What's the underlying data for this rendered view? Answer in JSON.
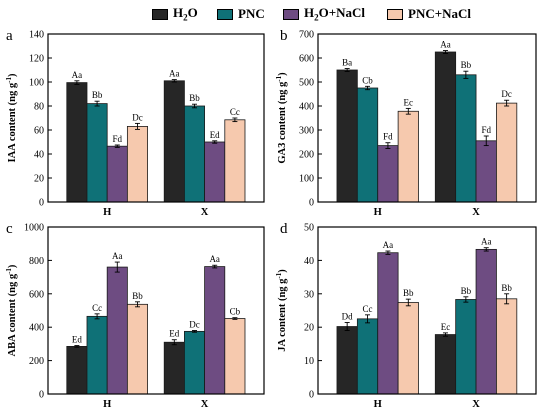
{
  "legend": {
    "items": [
      {
        "name": "H2O",
        "base": "H",
        "sub": "2",
        "rest": "O",
        "color": "#262626"
      },
      {
        "name": "PNC",
        "base": "PNC",
        "sub": "",
        "rest": "",
        "color": "#0f7177"
      },
      {
        "name": "H2O+NaCl",
        "base": "H",
        "sub": "2",
        "rest": "O+NaCl",
        "color": "#6e4c82"
      },
      {
        "name": "PNC+NaCl",
        "base": "PNC+NaCl",
        "sub": "",
        "rest": "",
        "color": "#f6c9ae"
      }
    ]
  },
  "chart_data": [
    {
      "type": "bar",
      "panel_letter": "a",
      "ylabel_main": "IAA content (ng g",
      "ylabel_sup": "-1",
      "ylabel_end": ")",
      "ylim": [
        0,
        140
      ],
      "yticks": [
        0,
        20,
        40,
        60,
        80,
        100,
        120,
        140
      ],
      "categories": [
        "H",
        "X"
      ],
      "series": [
        {
          "name": "H2O",
          "values": [
            99.5,
            101
          ],
          "errors": [
            1.5,
            1
          ],
          "labels": [
            "Aa",
            "Aa"
          ]
        },
        {
          "name": "PNC",
          "values": [
            82,
            80
          ],
          "errors": [
            2,
            1.5
          ],
          "labels": [
            "Bb",
            "Bb"
          ]
        },
        {
          "name": "H2O+NaCl",
          "values": [
            46.5,
            50
          ],
          "errors": [
            1,
            1
          ],
          "labels": [
            "Fd",
            "Ed"
          ]
        },
        {
          "name": "PNC+NaCl",
          "values": [
            63,
            68.5
          ],
          "errors": [
            2.5,
            1.5
          ],
          "labels": [
            "Dc",
            "Cc"
          ]
        }
      ]
    },
    {
      "type": "bar",
      "panel_letter": "b",
      "ylabel_main": "GA3 content (ng g",
      "ylabel_sup": "-1",
      "ylabel_end": ")",
      "ylim": [
        0,
        700
      ],
      "yticks": [
        0,
        100,
        200,
        300,
        400,
        500,
        600,
        700
      ],
      "categories": [
        "H",
        "X"
      ],
      "series": [
        {
          "name": "H2O",
          "values": [
            550,
            625
          ],
          "errors": [
            6,
            6
          ],
          "labels": [
            "Ba",
            "Aa"
          ]
        },
        {
          "name": "PNC",
          "values": [
            475,
            530
          ],
          "errors": [
            7,
            15
          ],
          "labels": [
            "Cb",
            "Bb"
          ]
        },
        {
          "name": "H2O+NaCl",
          "values": [
            235,
            255
          ],
          "errors": [
            12,
            20
          ],
          "labels": [
            "Fd",
            "Fd"
          ]
        },
        {
          "name": "PNC+NaCl",
          "values": [
            378,
            412
          ],
          "errors": [
            12,
            12
          ],
          "labels": [
            "Ec",
            "Dc"
          ]
        }
      ]
    },
    {
      "type": "bar",
      "panel_letter": "c",
      "ylabel_main": "ABA content (ng g",
      "ylabel_sup": "-1",
      "ylabel_end": ")",
      "ylim": [
        0,
        1000
      ],
      "yticks": [
        0,
        200,
        400,
        600,
        800,
        1000
      ],
      "categories": [
        "H",
        "X"
      ],
      "series": [
        {
          "name": "H2O",
          "values": [
            285,
            310
          ],
          "errors": [
            5,
            15
          ],
          "labels": [
            "Ed",
            "Ed"
          ]
        },
        {
          "name": "PNC",
          "values": [
            465,
            375
          ],
          "errors": [
            15,
            5
          ],
          "labels": [
            "Cc",
            "Dc"
          ]
        },
        {
          "name": "H2O+NaCl",
          "values": [
            760,
            763
          ],
          "errors": [
            30,
            8
          ],
          "labels": [
            "Aa",
            "Aa"
          ]
        },
        {
          "name": "PNC+NaCl",
          "values": [
            537,
            452
          ],
          "errors": [
            15,
            5
          ],
          "labels": [
            "Bb",
            "Cb"
          ]
        }
      ]
    },
    {
      "type": "bar",
      "panel_letter": "d",
      "ylabel_main": "JA content (ng g",
      "ylabel_sup": "-1",
      "ylabel_end": ")",
      "ylim": [
        0,
        50
      ],
      "yticks": [
        0,
        10,
        20,
        30,
        40,
        50
      ],
      "categories": [
        "H",
        "X"
      ],
      "series": [
        {
          "name": "H2O",
          "values": [
            20.2,
            17.8
          ],
          "errors": [
            1.2,
            0.5
          ],
          "labels": [
            "Dd",
            "Ec"
          ]
        },
        {
          "name": "PNC",
          "values": [
            22.5,
            28.3
          ],
          "errors": [
            1.2,
            0.8
          ],
          "labels": [
            "Cc",
            "Bb"
          ]
        },
        {
          "name": "H2O+NaCl",
          "values": [
            42.3,
            43.3
          ],
          "errors": [
            0.5,
            0.5
          ],
          "labels": [
            "Aa",
            "Aa"
          ]
        },
        {
          "name": "PNC+NaCl",
          "values": [
            27.4,
            28.5
          ],
          "errors": [
            1,
            1.5
          ],
          "labels": [
            "Bb",
            "Bb"
          ]
        }
      ]
    }
  ]
}
